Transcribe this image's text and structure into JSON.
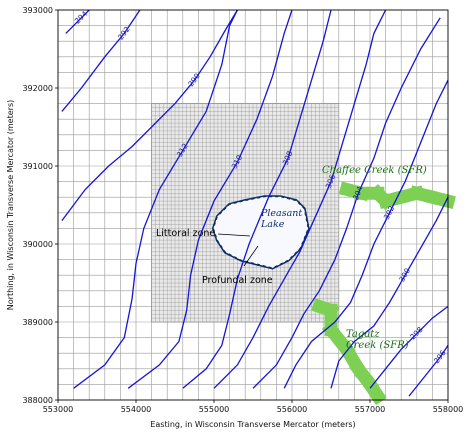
{
  "axes": {
    "xlabel": "Easting, in Wisconsin Transverse Mercator (meters)",
    "ylabel": "Northing, in Wisconsin Transverse Mercator (meters)",
    "xlim": [
      553000,
      558000
    ],
    "ylim": [
      388000,
      393000
    ],
    "xticks": [
      "553000",
      "554000",
      "555000",
      "556000",
      "557000",
      "558000"
    ],
    "yticks": [
      "388000",
      "389000",
      "390000",
      "391000",
      "392000",
      "393000"
    ]
  },
  "grid": {
    "coarse_spacing_m": 200,
    "fine_spacing_m": 50,
    "fine_extent_x": [
      554200,
      556600
    ],
    "fine_extent_y": [
      389000,
      391800
    ]
  },
  "colors": {
    "contour": "#1515d8",
    "lake_fill": "#0c2d64",
    "stream_fill": "#7ed055",
    "stream_label": "#1a6e12",
    "lake_label": "#0d2f6e"
  },
  "contours": [
    {
      "label": "312",
      "points": [
        [
          553200,
          388150
        ],
        [
          553600,
          388450
        ],
        [
          553850,
          388800
        ],
        [
          553950,
          389300
        ],
        [
          554000,
          389750
        ],
        [
          554100,
          390200
        ],
        [
          554300,
          390700
        ],
        [
          554600,
          391200
        ],
        [
          554900,
          391700
        ],
        [
          555100,
          392300
        ],
        [
          555200,
          392800
        ],
        [
          555300,
          393000
        ]
      ]
    },
    {
      "label": "310",
      "points": [
        [
          553900,
          388150
        ],
        [
          554300,
          388450
        ],
        [
          554550,
          388750
        ],
        [
          554650,
          389150
        ],
        [
          554700,
          389600
        ],
        [
          554800,
          390050
        ],
        [
          555000,
          390550
        ],
        [
          555300,
          391050
        ],
        [
          555550,
          391600
        ],
        [
          555750,
          392150
        ],
        [
          555900,
          392700
        ],
        [
          556000,
          393000
        ]
      ]
    },
    {
      "label": "308",
      "points": [
        [
          554600,
          388150
        ],
        [
          554900,
          388400
        ],
        [
          555100,
          388700
        ],
        [
          555200,
          389100
        ],
        [
          555300,
          389550
        ],
        [
          555450,
          390000
        ],
        [
          555700,
          390600
        ],
        [
          555950,
          391100
        ],
        [
          556100,
          391600
        ],
        [
          556250,
          392100
        ],
        [
          556400,
          392600
        ],
        [
          556500,
          393000
        ]
      ]
    },
    {
      "label": "306",
      "points": [
        [
          555000,
          388150
        ],
        [
          555300,
          388450
        ],
        [
          555500,
          388800
        ],
        [
          555700,
          389200
        ],
        [
          555900,
          389550
        ],
        [
          556100,
          389900
        ],
        [
          556300,
          390350
        ],
        [
          556500,
          390800
        ],
        [
          556650,
          391300
        ],
        [
          556800,
          391800
        ],
        [
          556950,
          392300
        ],
        [
          557050,
          392700
        ],
        [
          557200,
          393000
        ]
      ]
    },
    {
      "label": "304",
      "points": [
        [
          555500,
          388150
        ],
        [
          555800,
          388450
        ],
        [
          556000,
          388800
        ],
        [
          556150,
          389100
        ],
        [
          556350,
          389400
        ],
        [
          556550,
          389800
        ],
        [
          556700,
          390200
        ],
        [
          556850,
          390650
        ],
        [
          557050,
          391100
        ],
        [
          557200,
          391550
        ],
        [
          557400,
          392000
        ],
        [
          557650,
          392500
        ],
        [
          557900,
          392900
        ]
      ]
    },
    {
      "label": "302",
      "points": [
        [
          555900,
          388150
        ],
        [
          556050,
          388450
        ],
        [
          556250,
          388750
        ],
        [
          556550,
          389000
        ],
        [
          556750,
          389250
        ],
        [
          556900,
          389600
        ],
        [
          557050,
          390000
        ],
        [
          557250,
          390400
        ],
        [
          557450,
          390800
        ],
        [
          557650,
          391300
        ],
        [
          557850,
          391800
        ],
        [
          558000,
          392100
        ]
      ]
    },
    {
      "label": "300",
      "points": [
        [
          556500,
          388150
        ],
        [
          556600,
          388500
        ],
        [
          556800,
          388750
        ],
        [
          557050,
          388950
        ],
        [
          557250,
          389250
        ],
        [
          557450,
          389600
        ],
        [
          557650,
          389950
        ],
        [
          557850,
          390300
        ],
        [
          558000,
          390600
        ]
      ]
    },
    {
      "label": "298",
      "points": [
        [
          557000,
          388150
        ],
        [
          557200,
          388400
        ],
        [
          557400,
          388650
        ],
        [
          557600,
          388850
        ],
        [
          557800,
          389050
        ],
        [
          558000,
          389200
        ]
      ]
    },
    {
      "label": "296",
      "points": [
        [
          557500,
          388050
        ],
        [
          557700,
          388300
        ],
        [
          557900,
          388550
        ],
        [
          558000,
          388700
        ]
      ]
    },
    {
      "label": "294",
      "points": [
        [
          553100,
          392700
        ],
        [
          553300,
          392900
        ],
        [
          553400,
          393000
        ]
      ]
    },
    {
      "label": "292",
      "points": [
        [
          553050,
          391700
        ],
        [
          553300,
          392000
        ],
        [
          553600,
          392400
        ],
        [
          553850,
          392700
        ],
        [
          554050,
          393000
        ]
      ]
    },
    {
      "label": "290",
      "points": [
        [
          553050,
          390300
        ],
        [
          553350,
          390700
        ],
        [
          553650,
          391000
        ],
        [
          553950,
          391250
        ],
        [
          554200,
          391500
        ],
        [
          554500,
          391800
        ],
        [
          554750,
          392100
        ],
        [
          554950,
          392400
        ],
        [
          555150,
          392750
        ],
        [
          555300,
          393000
        ]
      ]
    }
  ],
  "lake": {
    "name_line1": "Pleasant",
    "name_line2": "Lake",
    "outline": [
      [
        555050,
        390350
      ],
      [
        555200,
        390500
      ],
      [
        555400,
        390550
      ],
      [
        555650,
        390600
      ],
      [
        555850,
        390600
      ],
      [
        556050,
        390550
      ],
      [
        556150,
        390450
      ],
      [
        556200,
        390200
      ],
      [
        556100,
        389950
      ],
      [
        555950,
        389800
      ],
      [
        555750,
        389700
      ],
      [
        555550,
        389750
      ],
      [
        555350,
        389800
      ],
      [
        555150,
        389900
      ],
      [
        555050,
        390050
      ],
      [
        555000,
        390200
      ]
    ]
  },
  "streams": [
    {
      "name": "Chaffee Creek (SFR)",
      "segments": [
        [
          556700,
          390700,
          556900,
          390650
        ],
        [
          556900,
          390650,
          557100,
          390650
        ],
        [
          557100,
          390650,
          557200,
          390550
        ],
        [
          557200,
          390550,
          557400,
          390600
        ],
        [
          557400,
          390600,
          557600,
          390650
        ],
        [
          557600,
          390650,
          557800,
          390600
        ],
        [
          557800,
          390600,
          558000,
          390550
        ]
      ]
    },
    {
      "name": "Tagatz Creek (SFR)",
      "segments": [
        [
          556350,
          389200,
          556500,
          389150
        ],
        [
          556500,
          389150,
          556500,
          388900
        ],
        [
          556500,
          388900,
          556700,
          388650
        ],
        [
          556700,
          388650,
          556850,
          388400
        ],
        [
          556850,
          388400,
          557000,
          388200
        ],
        [
          557000,
          388200,
          557100,
          388050
        ]
      ]
    }
  ],
  "annotations": {
    "littoral": "Littoral zone",
    "profundal": "Profundal zone",
    "chaffee": "Chaffee Creek (SFR)",
    "tagatz_line1": "Tagatz",
    "tagatz_line2": "Creek (SFR)"
  }
}
